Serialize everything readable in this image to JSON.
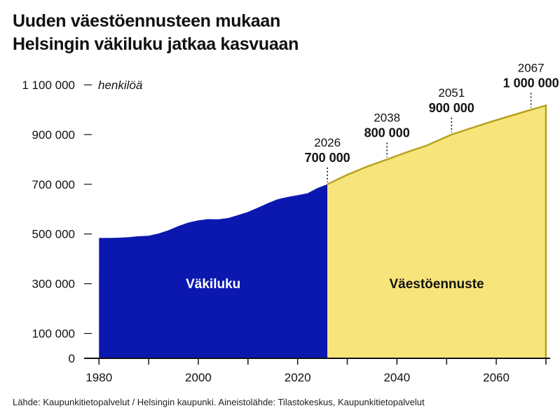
{
  "title": {
    "line1": "Uuden väestöennusteen mukaan",
    "line2": "Helsingin väkiluku jatkaa kasvuaan"
  },
  "source": "Lähde: Kaupunkitietopalvelut / Helsingin kaupunki. Aineistolähde: Tilastokeskus, Kaupunkitietopalvelut",
  "colors": {
    "history": "#0b18b0",
    "forecast": "#f7e57b",
    "forecast_line": "#b8a21e",
    "axis": "#111111"
  },
  "chart_data": {
    "type": "area",
    "unit_label": "henkilöä",
    "ylim": [
      0,
      1100000
    ],
    "xlim": [
      1977,
      2071
    ],
    "yticks": [
      {
        "value": 0,
        "label": "0"
      },
      {
        "value": 100000,
        "label": "100 000"
      },
      {
        "value": 300000,
        "label": "300 000"
      },
      {
        "value": 500000,
        "label": "500 000"
      },
      {
        "value": 700000,
        "label": "700 000"
      },
      {
        "value": 900000,
        "label": "900 000"
      },
      {
        "value": 1100000,
        "label": "1 100 000"
      }
    ],
    "xticks": [
      {
        "value": 1980,
        "label": "1980"
      },
      {
        "value": 2000,
        "label": "2000"
      },
      {
        "value": 2020,
        "label": "2020"
      },
      {
        "value": 2040,
        "label": "2040"
      },
      {
        "value": 2060,
        "label": "2060"
      }
    ],
    "series": [
      {
        "name": "Väkiluku",
        "x": [
          1980,
          1982,
          1984,
          1986,
          1988,
          1990,
          1992,
          1994,
          1996,
          1998,
          2000,
          2002,
          2004,
          2006,
          2008,
          2010,
          2012,
          2014,
          2016,
          2018,
          2020,
          2022,
          2024,
          2026
        ],
        "y": [
          484000,
          484000,
          485000,
          487000,
          491000,
          493000,
          502000,
          515000,
          532000,
          546000,
          555000,
          560000,
          559000,
          564000,
          576000,
          589000,
          606000,
          624000,
          640000,
          649000,
          656000,
          664000,
          685000,
          700000
        ]
      },
      {
        "name": "Väestöennuste",
        "x": [
          2026,
          2030,
          2034,
          2038,
          2042,
          2046,
          2051,
          2055,
          2059,
          2063,
          2067,
          2070
        ],
        "y": [
          700000,
          738000,
          771000,
          800000,
          829000,
          856000,
          900000,
          926000,
          952000,
          976000,
          1000000,
          1017000
        ]
      }
    ],
    "annotations": [
      {
        "year": "2026",
        "value": "700 000",
        "x": 2026,
        "y": 700000
      },
      {
        "year": "2038",
        "value": "800 000",
        "x": 2038,
        "y": 800000
      },
      {
        "year": "2051",
        "value": "900 000",
        "x": 2051,
        "y": 900000
      },
      {
        "year": "2067",
        "value": "1 000 000",
        "x": 2067,
        "y": 1000000
      }
    ]
  }
}
